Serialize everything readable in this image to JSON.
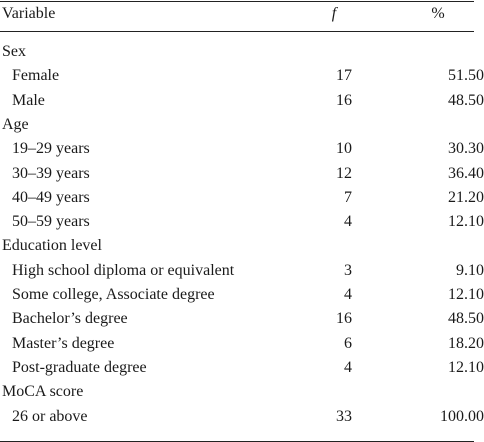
{
  "table": {
    "header": [
      "Variable",
      "f",
      "%"
    ],
    "rows": [
      [
        "Sex"
      ],
      [
        "Female",
        "17",
        "51.50"
      ],
      [
        "Male",
        "16",
        "48.50"
      ],
      [
        "Age"
      ],
      [
        "19–29 years",
        "10",
        "30.30"
      ],
      [
        "30–39 years",
        "12",
        "36.40"
      ],
      [
        "40–49 years",
        "7",
        "21.20"
      ],
      [
        "50–59 years",
        "4",
        "12.10"
      ],
      [
        "Education level"
      ],
      [
        "High school diploma or equivalent",
        "3",
        "9.10"
      ],
      [
        "Some college, Associate degree",
        "4",
        "12.10"
      ],
      [
        "Bachelor’s degree",
        "16",
        "48.50"
      ],
      [
        "Master’s degree",
        "6",
        "18.20"
      ],
      [
        "Post-graduate degree",
        "4",
        "12.10"
      ],
      [
        "MoCA score"
      ],
      [
        "26 or above",
        "33",
        "100.00"
      ]
    ]
  }
}
